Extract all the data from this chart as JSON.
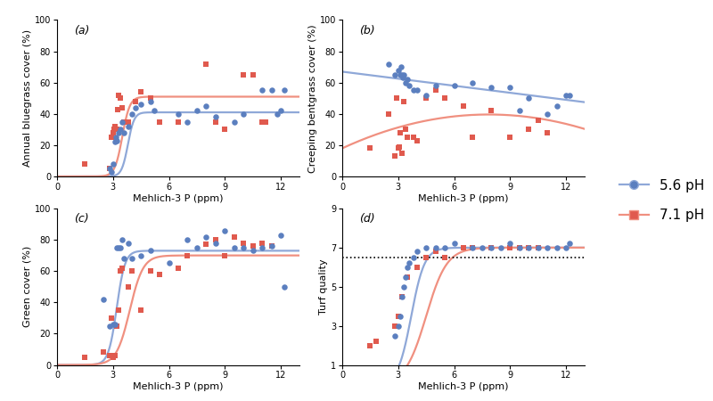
{
  "panel_a": {
    "title": "(a)",
    "ylabel": "Annual bluegrass cover (%)",
    "xlabel": "Mehlich-3 P (ppm)",
    "ylim": [
      0,
      100
    ],
    "xlim": [
      0,
      13
    ],
    "yticks": [
      0,
      20,
      40,
      60,
      80,
      100
    ],
    "xticks": [
      0,
      3,
      6,
      9,
      12
    ],
    "blue_x": [
      2.8,
      2.9,
      3.0,
      3.1,
      3.15,
      3.2,
      3.3,
      3.4,
      3.5,
      3.6,
      3.8,
      4.0,
      4.2,
      4.5,
      5.0,
      5.2,
      6.5,
      7.0,
      7.5,
      8.0,
      8.5,
      9.5,
      10.0,
      11.0,
      11.5,
      11.8,
      12.0,
      12.2
    ],
    "blue_y": [
      5,
      3,
      8,
      22,
      25,
      23,
      28,
      30,
      35,
      28,
      32,
      40,
      44,
      46,
      48,
      42,
      40,
      35,
      42,
      45,
      38,
      35,
      40,
      55,
      55,
      40,
      42,
      55
    ],
    "red_x": [
      1.5,
      2.8,
      2.9,
      3.0,
      3.05,
      3.1,
      3.2,
      3.25,
      3.3,
      3.4,
      3.5,
      3.6,
      3.8,
      4.2,
      4.5,
      5.0,
      5.5,
      6.5,
      8.0,
      8.5,
      9.0,
      10.0,
      10.5,
      11.0,
      11.2
    ],
    "red_y": [
      8,
      5,
      25,
      28,
      30,
      32,
      30,
      43,
      52,
      50,
      44,
      35,
      35,
      48,
      54,
      50,
      35,
      35,
      72,
      35,
      30,
      65,
      65,
      35,
      35
    ],
    "blue_curve": [
      41.0,
      6.0,
      3.8
    ],
    "red_curve": [
      51.0,
      5.0,
      3.5
    ]
  },
  "panel_b": {
    "title": "(b)",
    "ylabel": "Creeping bentgrass cover (%)",
    "xlabel": "Mehlich-3 P (ppm)",
    "ylim": [
      0,
      100
    ],
    "xlim": [
      0,
      13
    ],
    "yticks": [
      0,
      20,
      40,
      60,
      80,
      100
    ],
    "xticks": [
      0,
      3,
      6,
      9,
      12
    ],
    "blue_x": [
      2.5,
      2.8,
      3.0,
      3.1,
      3.15,
      3.2,
      3.25,
      3.3,
      3.4,
      3.5,
      3.6,
      3.8,
      4.0,
      4.5,
      5.0,
      6.0,
      7.0,
      8.0,
      9.0,
      9.5,
      10.0,
      11.0,
      11.5,
      12.0,
      12.2
    ],
    "blue_y": [
      72,
      65,
      68,
      65,
      70,
      65,
      63,
      65,
      60,
      62,
      58,
      55,
      55,
      52,
      58,
      58,
      60,
      57,
      57,
      42,
      50,
      40,
      45,
      52,
      52
    ],
    "red_x": [
      1.5,
      2.5,
      2.8,
      2.9,
      3.0,
      3.05,
      3.1,
      3.2,
      3.3,
      3.4,
      3.5,
      3.8,
      4.0,
      4.5,
      5.0,
      5.5,
      6.5,
      7.0,
      8.0,
      9.0,
      10.0,
      10.5,
      11.0
    ],
    "red_y": [
      18,
      40,
      13,
      50,
      18,
      19,
      28,
      15,
      48,
      30,
      25,
      25,
      23,
      50,
      55,
      50,
      45,
      25,
      42,
      25,
      30,
      36,
      28
    ],
    "blue_slope": -1.5,
    "blue_intercept": 67.0,
    "red_quad_a": -0.35,
    "red_quad_b": 5.5,
    "red_quad_c": 18.0
  },
  "panel_c": {
    "title": "(c)",
    "ylabel": "Green cover (%)",
    "xlabel": "Mehlich-3 P (ppm)",
    "ylim": [
      0,
      100
    ],
    "xlim": [
      0,
      13
    ],
    "yticks": [
      0,
      20,
      40,
      60,
      80,
      100
    ],
    "xticks": [
      0,
      3,
      6,
      9,
      12
    ],
    "blue_x": [
      2.5,
      2.8,
      3.0,
      3.1,
      3.2,
      3.3,
      3.4,
      3.5,
      3.6,
      3.8,
      4.0,
      4.5,
      5.0,
      6.0,
      7.0,
      7.5,
      8.0,
      8.5,
      9.0,
      9.5,
      10.0,
      10.5,
      11.0,
      11.5,
      12.0,
      12.2
    ],
    "blue_y": [
      42,
      25,
      26,
      26,
      75,
      75,
      75,
      80,
      68,
      78,
      68,
      70,
      73,
      65,
      80,
      75,
      82,
      78,
      86,
      75,
      75,
      73,
      75,
      76,
      83,
      50
    ],
    "red_x": [
      1.5,
      2.5,
      2.8,
      2.9,
      3.0,
      3.1,
      3.2,
      3.3,
      3.4,
      3.5,
      3.8,
      4.0,
      4.5,
      5.0,
      5.5,
      6.5,
      7.0,
      8.0,
      8.5,
      9.0,
      9.5,
      10.0,
      10.5,
      11.0,
      11.5
    ],
    "red_y": [
      5,
      8,
      6,
      30,
      5,
      6,
      25,
      35,
      60,
      62,
      50,
      60,
      35,
      60,
      58,
      62,
      70,
      77,
      80,
      70,
      82,
      78,
      76,
      78,
      76
    ],
    "blue_curve": [
      73.0,
      4.5,
      3.2
    ],
    "red_curve": [
      70.0,
      2.8,
      3.9
    ]
  },
  "panel_d": {
    "title": "(d)",
    "ylabel": "Turf quality",
    "xlabel": "Mehlich-3 P (ppm)",
    "ylim": [
      1,
      9
    ],
    "xlim": [
      0,
      13
    ],
    "yticks": [
      1,
      3,
      5,
      7,
      9
    ],
    "xticks": [
      0,
      3,
      6,
      9,
      12
    ],
    "dotted_line_y": 6.5,
    "blue_x": [
      2.8,
      3.0,
      3.1,
      3.2,
      3.3,
      3.4,
      3.5,
      3.6,
      3.8,
      4.0,
      4.5,
      5.0,
      5.5,
      6.0,
      7.0,
      7.5,
      8.0,
      8.5,
      9.0,
      9.5,
      10.0,
      10.5,
      11.0,
      11.5,
      12.0,
      12.2
    ],
    "blue_y": [
      2.5,
      3.0,
      3.5,
      4.5,
      5.0,
      5.5,
      6.0,
      6.2,
      6.5,
      6.8,
      7.0,
      7.0,
      7.0,
      7.2,
      7.0,
      7.0,
      7.0,
      7.0,
      7.2,
      7.0,
      7.0,
      7.0,
      7.0,
      7.0,
      7.0,
      7.2
    ],
    "red_x": [
      1.5,
      1.8,
      2.8,
      3.0,
      3.2,
      3.5,
      4.0,
      4.5,
      5.0,
      5.5,
      6.5,
      7.0,
      8.0,
      9.0,
      9.5,
      10.0,
      10.5
    ],
    "red_y": [
      2.0,
      2.2,
      3.0,
      3.5,
      4.5,
      5.5,
      6.0,
      6.5,
      6.8,
      6.5,
      7.0,
      7.0,
      7.0,
      7.0,
      7.0,
      7.0,
      7.0
    ],
    "blue_curve": [
      7.0,
      2.8,
      3.7
    ],
    "red_curve": [
      7.0,
      1.8,
      4.5
    ]
  },
  "blue_color": "#5B7FBF",
  "red_color": "#E05A4E",
  "blue_line_color": "#8FA8D8",
  "red_line_color": "#F09080",
  "marker_size": 22,
  "line_width": 1.6,
  "legend_labels": [
    "5.6 pH",
    "7.1 pH"
  ],
  "font_size_label": 8,
  "font_size_tick": 7,
  "font_size_panel": 9,
  "font_size_legend": 11
}
